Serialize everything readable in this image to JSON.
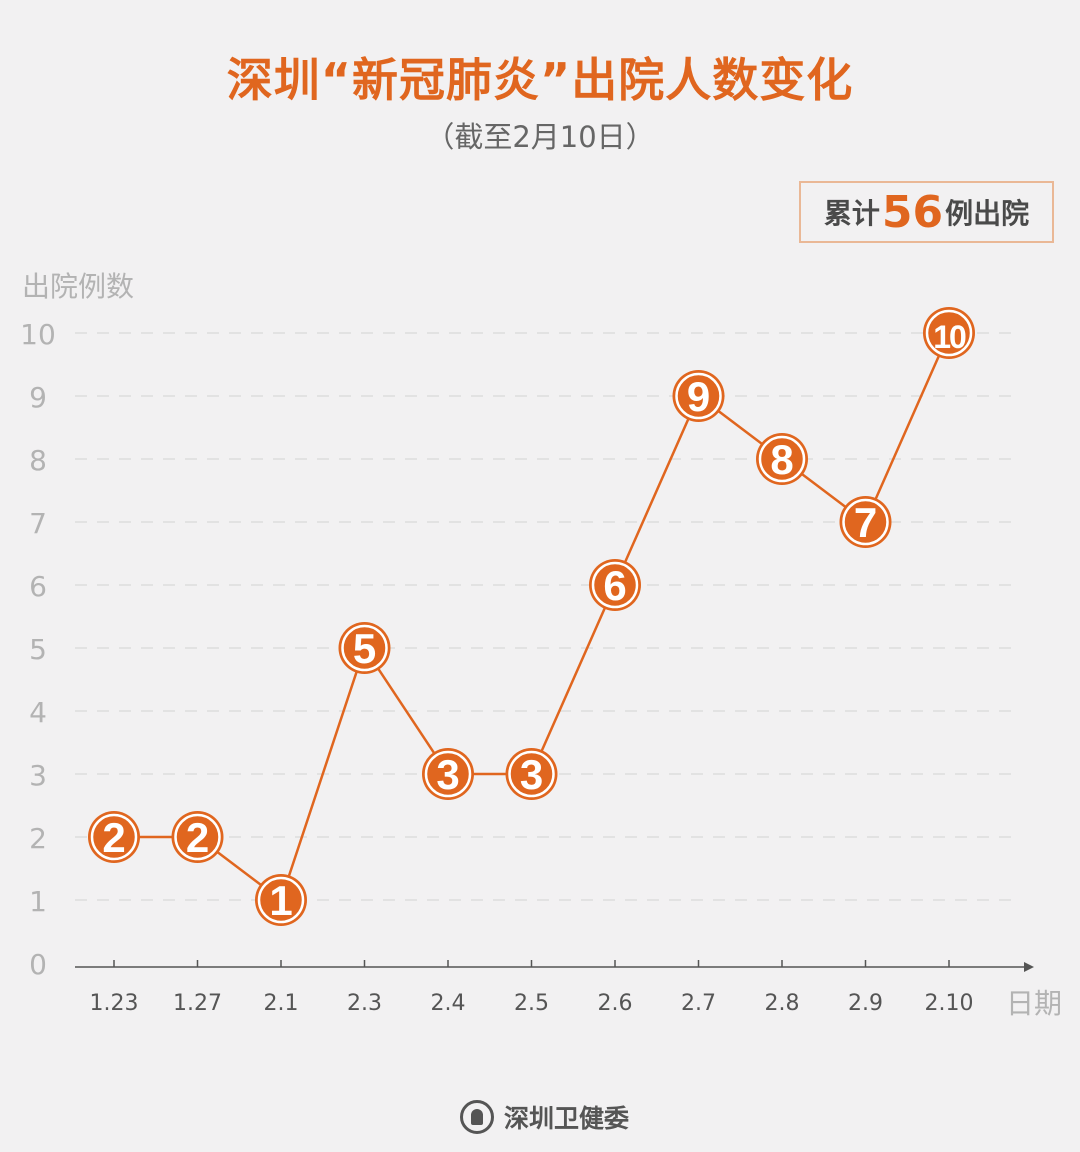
{
  "title": "深圳“新冠肺炎”出院人数变化",
  "subtitle": "（截至2月10日）",
  "total": {
    "prefix": "累计",
    "value": "56",
    "suffix": "例出院"
  },
  "footer": {
    "org": "深圳卫健委",
    "icon": "shenzhen-health-commission-logo"
  },
  "colors": {
    "accent": "#e0661f",
    "grid": "#d9d9d9",
    "axis": "#555555",
    "background": "#f2f1f2"
  },
  "chart_data": {
    "type": "line",
    "ylabel": "出院例数",
    "xlabel": "日期",
    "categories": [
      "1.23",
      "1.27",
      "2.1",
      "2.3",
      "2.4",
      "2.5",
      "2.6",
      "2.7",
      "2.8",
      "2.9",
      "2.10"
    ],
    "values": [
      2,
      2,
      1,
      5,
      3,
      3,
      6,
      9,
      8,
      7,
      10
    ],
    "ylim": [
      0,
      10
    ],
    "yticks": [
      0,
      1,
      2,
      3,
      4,
      5,
      6,
      7,
      8,
      9,
      10
    ],
    "grid": true,
    "data_labels": true
  }
}
